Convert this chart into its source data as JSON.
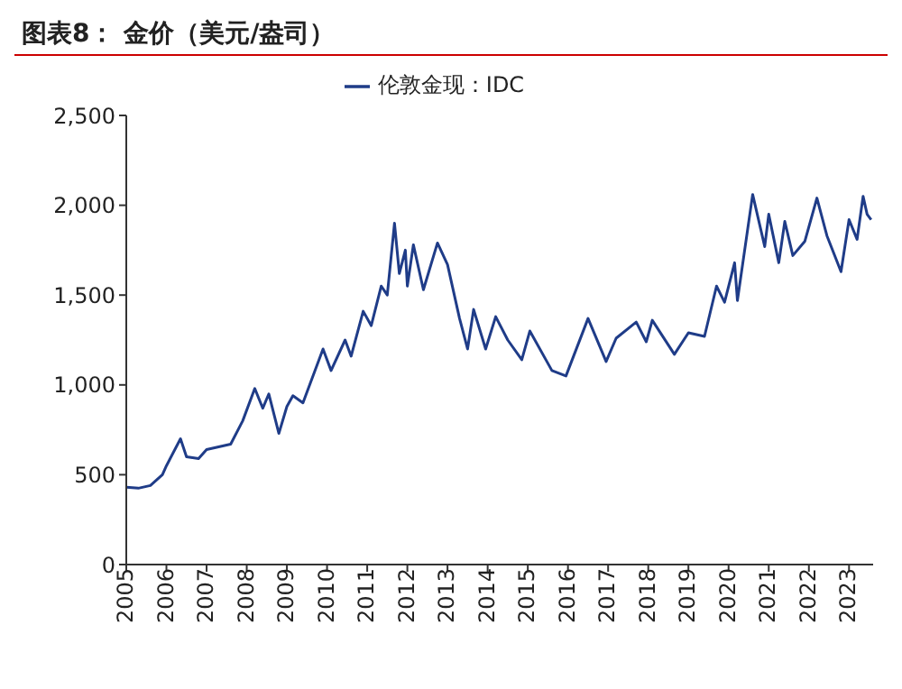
{
  "chart_data": {
    "type": "line",
    "title": "图表8： 金价（美元/盎司）",
    "legend": "top",
    "grid": false,
    "marker": "none",
    "line_style": "solid",
    "xlim": [
      2005,
      2023.6
    ],
    "xticks": [
      2005,
      2006,
      2007,
      2008,
      2009,
      2010,
      2011,
      2012,
      2013,
      2014,
      2015,
      2016,
      2017,
      2018,
      2019,
      2020,
      2021,
      2022,
      2023
    ],
    "ylim": [
      0,
      2500
    ],
    "yticks": [
      0,
      500,
      {
        "value": 1000,
        "label": "1,000"
      },
      {
        "value": 1500,
        "label": "1,500"
      },
      {
        "value": 2000,
        "label": "2,000"
      },
      {
        "value": 2500,
        "label": "2,500"
      }
    ],
    "series": [
      {
        "name": "伦敦金现：IDC",
        "color": "#1f3c88",
        "x": [
          2005.0,
          2005.3,
          2005.6,
          2005.9,
          2006.0,
          2006.35,
          2006.5,
          2006.8,
          2007.0,
          2007.4,
          2007.6,
          2007.9,
          2008.2,
          2008.4,
          2008.55,
          2008.8,
          2009.0,
          2009.15,
          2009.4,
          2009.9,
          2010.1,
          2010.45,
          2010.6,
          2010.9,
          2011.1,
          2011.35,
          2011.5,
          2011.68,
          2011.8,
          2011.95,
          2012.0,
          2012.15,
          2012.4,
          2012.75,
          2013.0,
          2013.3,
          2013.5,
          2013.65,
          2013.95,
          2014.2,
          2014.5,
          2014.85,
          2015.05,
          2015.6,
          2015.95,
          2016.5,
          2016.95,
          2017.2,
          2017.7,
          2017.95,
          2018.1,
          2018.65,
          2019.0,
          2019.4,
          2019.7,
          2019.9,
          2020.15,
          2020.22,
          2020.6,
          2020.9,
          2021.0,
          2021.25,
          2021.4,
          2021.6,
          2021.9,
          2022.2,
          2022.45,
          2022.8,
          2023.0,
          2023.2,
          2023.35,
          2023.45,
          2023.55
        ],
        "values": [
          430,
          425,
          440,
          500,
          550,
          700,
          600,
          590,
          640,
          660,
          670,
          800,
          980,
          870,
          950,
          730,
          880,
          940,
          900,
          1200,
          1080,
          1250,
          1160,
          1410,
          1330,
          1550,
          1500,
          1900,
          1620,
          1750,
          1550,
          1780,
          1530,
          1790,
          1670,
          1370,
          1200,
          1420,
          1200,
          1380,
          1250,
          1140,
          1300,
          1080,
          1050,
          1370,
          1130,
          1260,
          1350,
          1240,
          1360,
          1170,
          1290,
          1270,
          1550,
          1460,
          1680,
          1470,
          2060,
          1770,
          1950,
          1680,
          1910,
          1720,
          1800,
          2040,
          1830,
          1630,
          1920,
          1810,
          2050,
          1950,
          1920
        ]
      }
    ]
  }
}
